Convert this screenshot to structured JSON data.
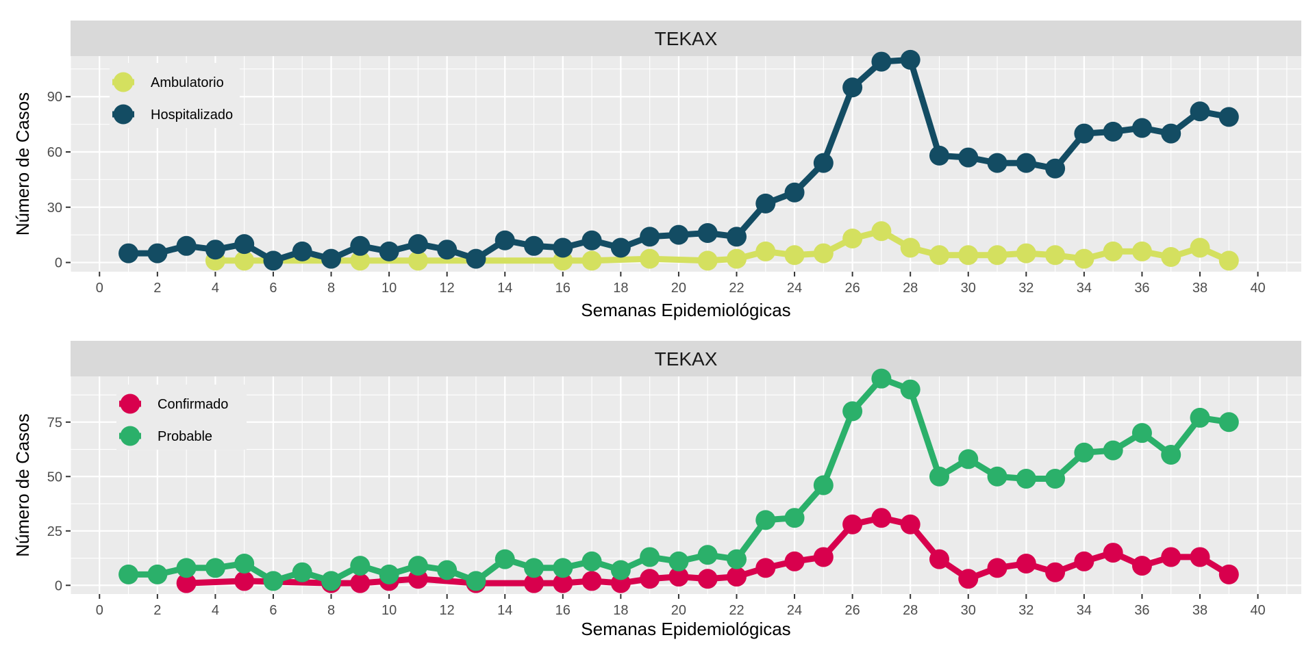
{
  "chart_data": [
    {
      "type": "line",
      "title": "TEKAX",
      "xlabel": "Semanas Epidemiológicas",
      "ylabel": "Número de Casos",
      "xlim": [
        -1,
        41.5
      ],
      "ylim": [
        -5,
        112
      ],
      "xticks": [
        0,
        2,
        4,
        6,
        8,
        10,
        12,
        14,
        16,
        18,
        20,
        22,
        24,
        26,
        28,
        30,
        32,
        34,
        36,
        38,
        40
      ],
      "yticks": [
        0,
        30,
        60,
        90
      ],
      "grid": true,
      "legend_position": "top-left",
      "series": [
        {
          "name": "Ambulatorio",
          "color": "#d4e05f",
          "x": [
            4,
            5,
            9,
            11,
            16,
            17,
            19,
            21,
            22,
            23,
            24,
            25,
            26,
            27,
            28,
            29,
            30,
            31,
            32,
            33,
            34,
            35,
            36,
            37,
            38,
            39
          ],
          "y": [
            1,
            1,
            1,
            1,
            1,
            1,
            2,
            1,
            2,
            6,
            4,
            5,
            13,
            17,
            8,
            4,
            4,
            4,
            5,
            4,
            2,
            6,
            6,
            3,
            8,
            1
          ]
        },
        {
          "name": "Hospitalizado",
          "color": "#134c63",
          "x": [
            1,
            2,
            3,
            4,
            5,
            6,
            7,
            8,
            9,
            10,
            11,
            12,
            13,
            14,
            15,
            16,
            17,
            18,
            19,
            20,
            21,
            22,
            23,
            24,
            25,
            26,
            27,
            28,
            29,
            30,
            31,
            32,
            33,
            34,
            35,
            36,
            37,
            38,
            39
          ],
          "y": [
            5,
            5,
            9,
            7,
            10,
            1,
            6,
            2,
            9,
            6,
            10,
            7,
            2,
            12,
            9,
            8,
            12,
            8,
            14,
            15,
            16,
            14,
            32,
            38,
            54,
            95,
            109,
            110,
            58,
            57,
            54,
            54,
            51,
            70,
            71,
            73,
            70,
            82,
            79
          ]
        }
      ]
    },
    {
      "type": "line",
      "title": "TEKAX",
      "xlabel": "Semanas Epidemiológicas",
      "ylabel": "Número de Casos",
      "xlim": [
        -1,
        41.5
      ],
      "ylim": [
        -4,
        96
      ],
      "xticks": [
        0,
        2,
        4,
        6,
        8,
        10,
        12,
        14,
        16,
        18,
        20,
        22,
        24,
        26,
        28,
        30,
        32,
        34,
        36,
        38,
        40
      ],
      "yticks": [
        0,
        25,
        50,
        75
      ],
      "grid": true,
      "legend_position": "top-left",
      "series": [
        {
          "name": "Confirmado",
          "color": "#d8004d",
          "x": [
            3,
            5,
            8,
            9,
            10,
            11,
            13,
            15,
            16,
            17,
            18,
            19,
            20,
            21,
            22,
            23,
            24,
            25,
            26,
            27,
            28,
            29,
            30,
            31,
            32,
            33,
            34,
            35,
            36,
            37,
            38,
            39
          ],
          "y": [
            1,
            2,
            1,
            1,
            2,
            3,
            1,
            1,
            1,
            2,
            1,
            3,
            4,
            3,
            4,
            8,
            11,
            13,
            28,
            31,
            28,
            12,
            3,
            8,
            10,
            6,
            11,
            15,
            9,
            13,
            13,
            5
          ]
        },
        {
          "name": "Probable",
          "color": "#2bb06a",
          "x": [
            1,
            2,
            3,
            4,
            5,
            6,
            7,
            8,
            9,
            10,
            11,
            12,
            13,
            14,
            15,
            16,
            17,
            18,
            19,
            20,
            21,
            22,
            23,
            24,
            25,
            26,
            27,
            28,
            29,
            30,
            31,
            32,
            33,
            34,
            35,
            36,
            37,
            38,
            39
          ],
          "y": [
            5,
            5,
            8,
            8,
            10,
            2,
            6,
            2,
            9,
            5,
            9,
            7,
            2,
            12,
            8,
            8,
            11,
            7,
            13,
            11,
            14,
            12,
            30,
            31,
            46,
            80,
            95,
            90,
            50,
            58,
            50,
            49,
            49,
            61,
            62,
            70,
            60,
            77,
            75
          ]
        }
      ]
    }
  ]
}
